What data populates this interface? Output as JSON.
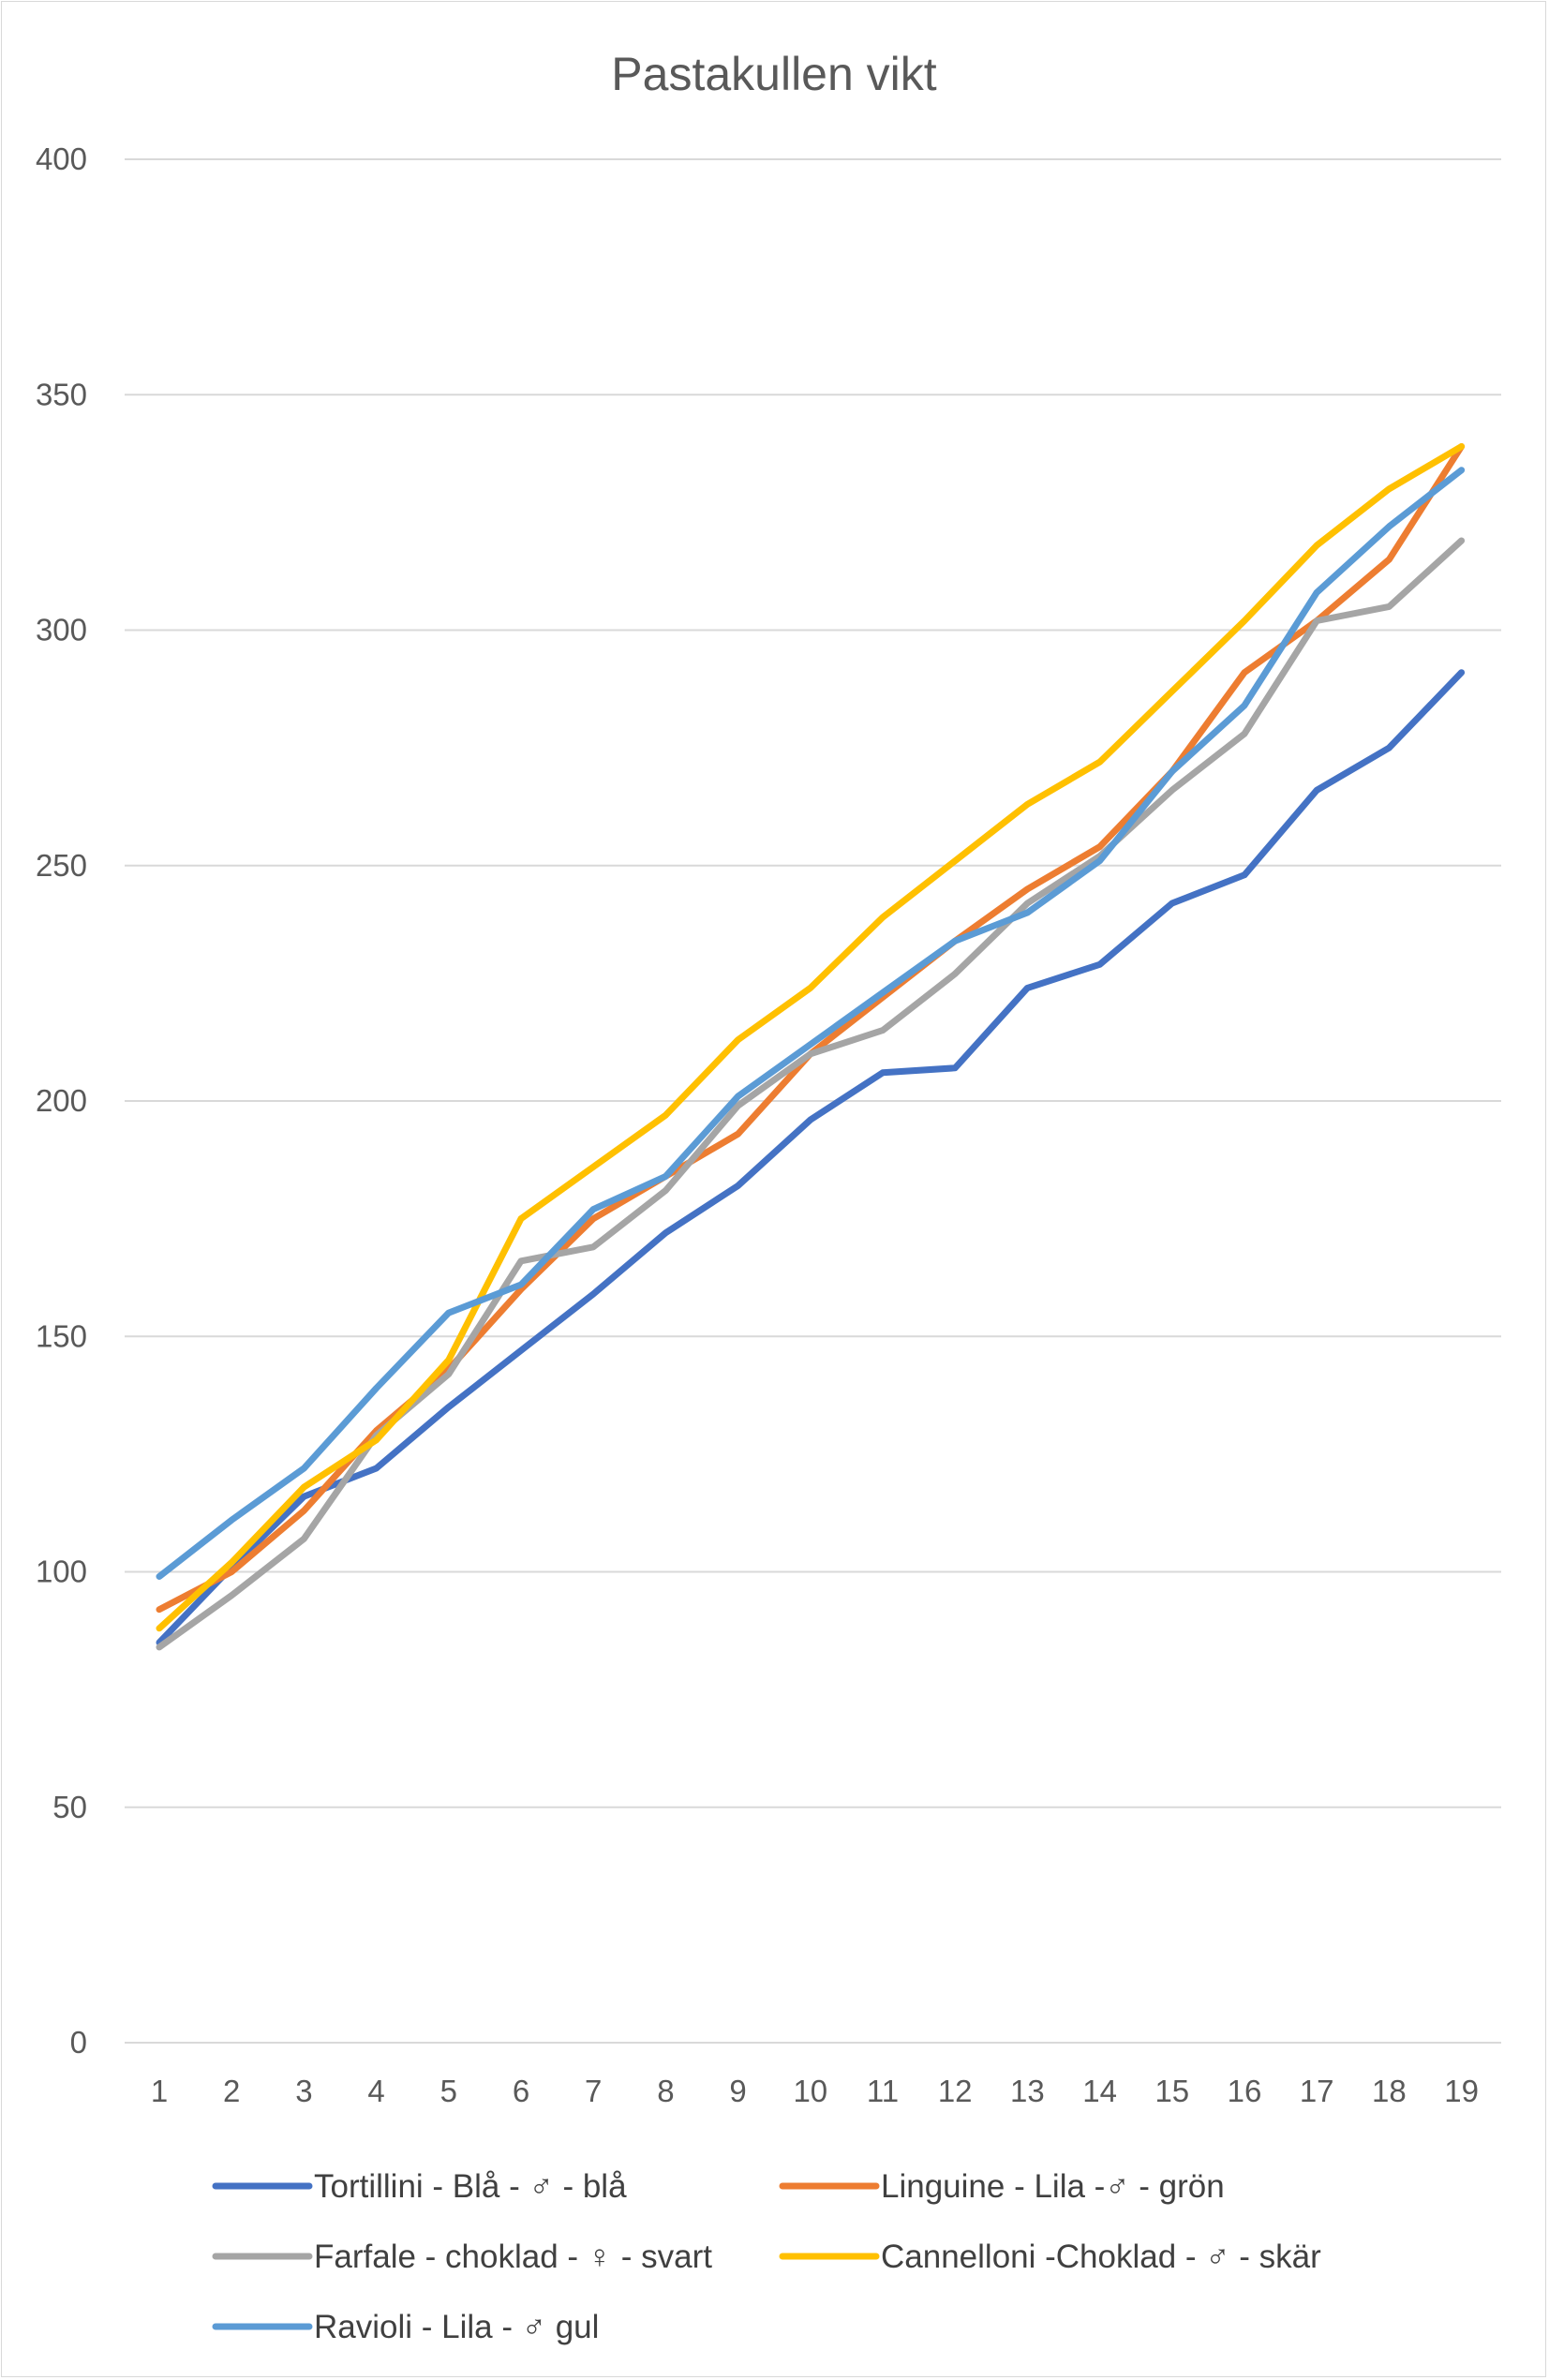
{
  "chart_data": {
    "type": "line",
    "title": "Pastakullen vikt",
    "xlabel": "",
    "ylabel": "",
    "x": [
      "1",
      "2",
      "3",
      "4",
      "5",
      "6",
      "7",
      "8",
      "9",
      "10",
      "11",
      "12",
      "13",
      "14",
      "15",
      "16",
      "17",
      "18",
      "19"
    ],
    "ylim": [
      0,
      400
    ],
    "yticks": [
      "0",
      "50",
      "100",
      "150",
      "200",
      "250",
      "300",
      "350",
      "400"
    ],
    "grid": true,
    "legend_position": "bottom",
    "series": [
      {
        "name": "Tortillini - Blå - ♂ - blå",
        "color": "#4472C4",
        "values": [
          85,
          101,
          116,
          122,
          135,
          147,
          159,
          172,
          182,
          196,
          206,
          207,
          224,
          229,
          242,
          248,
          266,
          275,
          291
        ]
      },
      {
        "name": "Linguine - Lila -♂ - grön",
        "color": "#ED7D31",
        "values": [
          92,
          100,
          113,
          130,
          143,
          160,
          175,
          184,
          193,
          210,
          222,
          234,
          245,
          254,
          270,
          291,
          302,
          315,
          339
        ]
      },
      {
        "name": "Farfale - choklad - ♀ - svart",
        "color": "#A5A5A5",
        "values": [
          84,
          95,
          107,
          129,
          142,
          166,
          169,
          181,
          199,
          210,
          215,
          227,
          242,
          252,
          266,
          278,
          302,
          305,
          319
        ]
      },
      {
        "name": "Cannelloni -Choklad - ♂ - skär",
        "color": "#FFC000",
        "values": [
          88,
          102,
          118,
          128,
          145,
          175,
          186,
          197,
          213,
          224,
          239,
          251,
          263,
          272,
          287,
          302,
          318,
          330,
          339
        ]
      },
      {
        "name": "Ravioli - Lila - ♂ gul",
        "color": "#5B9BD5",
        "values": [
          99,
          111,
          122,
          139,
          155,
          161,
          177,
          184,
          201,
          212,
          223,
          234,
          240,
          251,
          270,
          284,
          308,
          322,
          334
        ]
      }
    ]
  }
}
